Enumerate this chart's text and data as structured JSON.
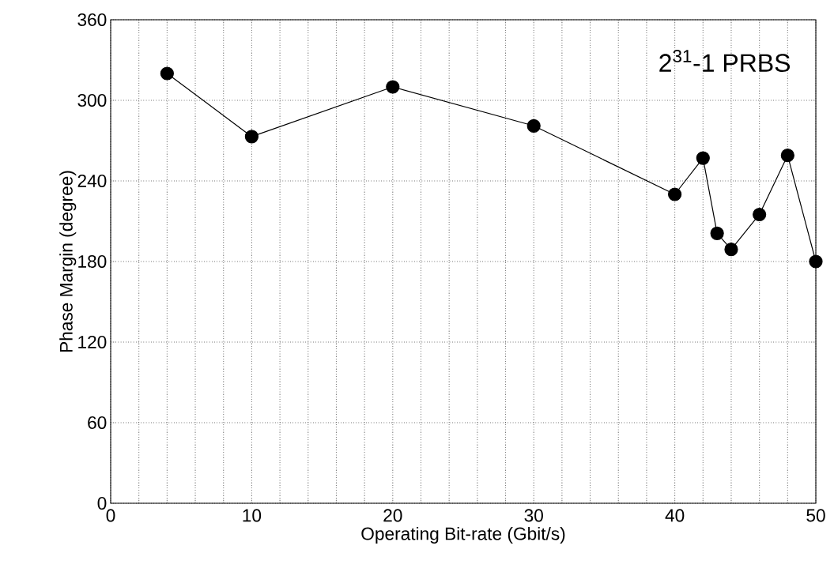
{
  "chart_data": {
    "type": "line",
    "xlabel": "Operating Bit-rate (Gbit/s)",
    "ylabel": "Phase Margin (degree)",
    "annotations": [
      "2$^{31}$-1 PRBS"
    ],
    "x": [
      4,
      10,
      20,
      30,
      40,
      42,
      43,
      44,
      46,
      48,
      50
    ],
    "series": [
      {
        "color": "#000000",
        "values": [
          320,
          273,
          310,
          281,
          230,
          257,
          201,
          189,
          215,
          259,
          180
        ]
      }
    ],
    "xlim": [
      0,
      50
    ],
    "ylim": [
      0,
      360
    ],
    "xticks": [
      0,
      {
        "value": 2,
        "label": null
      },
      {
        "value": 4,
        "label": null
      },
      {
        "value": 6,
        "label": null
      },
      {
        "value": 8,
        "label": null
      },
      10,
      {
        "value": 12,
        "label": null
      },
      {
        "value": 14,
        "label": null
      },
      {
        "value": 16,
        "label": null
      },
      {
        "value": 18,
        "label": null
      },
      20,
      {
        "value": 22,
        "label": null
      },
      {
        "value": 24,
        "label": null
      },
      {
        "value": 26,
        "label": null
      },
      {
        "value": 28,
        "label": null
      },
      30,
      {
        "value": 32,
        "label": null
      },
      {
        "value": 34,
        "label": null
      },
      {
        "value": 36,
        "label": null
      },
      {
        "value": 38,
        "label": null
      },
      40,
      {
        "value": 42,
        "label": null
      },
      {
        "value": 44,
        "label": null
      },
      {
        "value": 46,
        "label": null
      },
      {
        "value": 48,
        "label": null
      },
      50
    ],
    "yticks": [
      0,
      60,
      120,
      180,
      240,
      300,
      360
    ],
    "grid": true,
    "marker": "circle",
    "line_style": "solid"
  }
}
